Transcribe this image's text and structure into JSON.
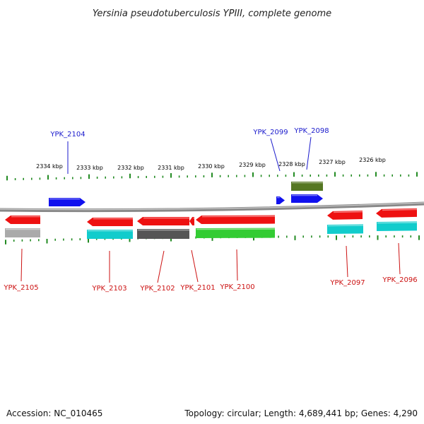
{
  "title": "Yersinia pseudotuberculosis YPIII, complete genome",
  "footer": {
    "accession": "Accession: NC_010465",
    "summary": "Topology: circular; Length: 4,689,441 bp; Genes: 4,290"
  },
  "colors": {
    "backbone": "#888888",
    "tick": "#228B22",
    "top_label": "#1a1acc",
    "bottom_label": "#cc1111",
    "red": "#ee1111",
    "blue": "#1111ee",
    "olive": "#557722",
    "cyan": "#11cccc",
    "grey": "#aaaaaa",
    "darkgrey": "#555555",
    "green": "#33cc33"
  },
  "scale_labels": [
    "2334 kbp",
    "2333 kbp",
    "2332 kbp",
    "2331 kbp",
    "2330 kbp",
    "2329 kbp",
    "2328 kbp",
    "2327 kbp",
    "2326 kbp"
  ],
  "genes": [
    {
      "id": "YPK_2105",
      "strand": "-",
      "side": "bottom"
    },
    {
      "id": "YPK_2104",
      "strand": "+",
      "side": "top"
    },
    {
      "id": "YPK_2103",
      "strand": "-",
      "side": "bottom"
    },
    {
      "id": "YPK_2102",
      "strand": "-",
      "side": "bottom"
    },
    {
      "id": "YPK_2101",
      "strand": "-",
      "side": "bottom"
    },
    {
      "id": "YPK_2100",
      "strand": "-",
      "side": "bottom"
    },
    {
      "id": "YPK_2099",
      "strand": "+",
      "side": "top"
    },
    {
      "id": "YPK_2098",
      "strand": "+",
      "side": "top"
    },
    {
      "id": "YPK_2097",
      "strand": "-",
      "side": "bottom"
    },
    {
      "id": "YPK_2096",
      "strand": "-",
      "side": "bottom"
    }
  ]
}
